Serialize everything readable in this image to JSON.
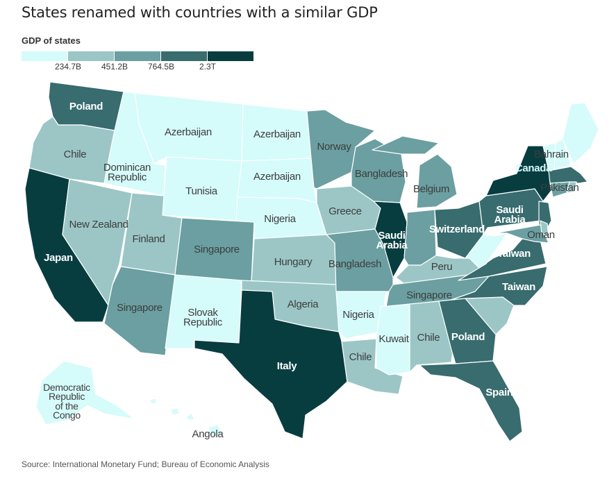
{
  "header": {
    "title": "States renamed with countries with a similar GDP"
  },
  "legend": {
    "title": "GDP of states",
    "colors": [
      "#d6fbfb",
      "#9cc6c6",
      "#6b9fa1",
      "#386c6f",
      "#083d40"
    ],
    "labels": [
      "234.7B",
      "451.2B",
      "764.5B",
      "2.3T"
    ]
  },
  "states": {
    "WA": "Poland",
    "OR": "Chile",
    "CA": "Japan",
    "ID": "Dominican Republic",
    "NV": "New Zealand",
    "MT": "Azerbaijan",
    "WY": "Tunisia",
    "UT": "Finland",
    "AZ": "Singapore",
    "CO": "Singapore",
    "NM": "Slovak Republic",
    "ND": "Azerbaijan",
    "SD": "Azerbaijan",
    "NE": "Nigeria",
    "KS": "Hungary",
    "OK": "Algeria",
    "TX": "Italy",
    "MN": "Norway",
    "IA": "Greece",
    "MO": "Bangladesh",
    "AR": "Nigeria",
    "LA": "Chile",
    "WI": "Bangladesh",
    "IL": "Saudi Arabia",
    "MI": "Belgium",
    "IN": "",
    "OH": "Switzerland",
    "KY": "Peru",
    "TN": "Singapore",
    "MS": "Kuwait",
    "AL": "Chile",
    "GA": "Poland",
    "FL": "Spain",
    "SC": "",
    "NC": "Taiwan",
    "VA": "Taiwan",
    "WV": "",
    "PA": "Saudi Arabia",
    "NY": "Canada",
    "MD": "Oman",
    "ME": "Bahrain",
    "MA": "Pakistan",
    "AK": "Democratic Republic of the Congo",
    "HI": "Angola"
  },
  "source": "Source: International Monetary Fund; Bureau of Economic Analysis"
}
